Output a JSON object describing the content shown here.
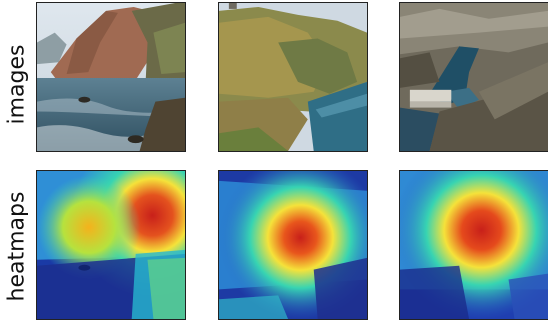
{
  "rows": [
    {
      "label": "images"
    },
    {
      "label": "heatmaps"
    }
  ],
  "colors": {
    "jet_low": "#0a2a9a",
    "jet_mid": "#37d4b2",
    "jet_yellow": "#f5e23a",
    "jet_high": "#c8201a",
    "sea": "#3b6a86",
    "rock": "#8a7a48"
  },
  "panels": [
    {
      "row": "images",
      "scene": "coastal-cliff-headland"
    },
    {
      "row": "images",
      "scene": "green-cliff-cove"
    },
    {
      "row": "images",
      "scene": "dam-canyon"
    },
    {
      "row": "heatmaps",
      "scene": "coastal-cliff-headland"
    },
    {
      "row": "heatmaps",
      "scene": "green-cliff-cove"
    },
    {
      "row": "heatmaps",
      "scene": "dam-canyon"
    }
  ]
}
